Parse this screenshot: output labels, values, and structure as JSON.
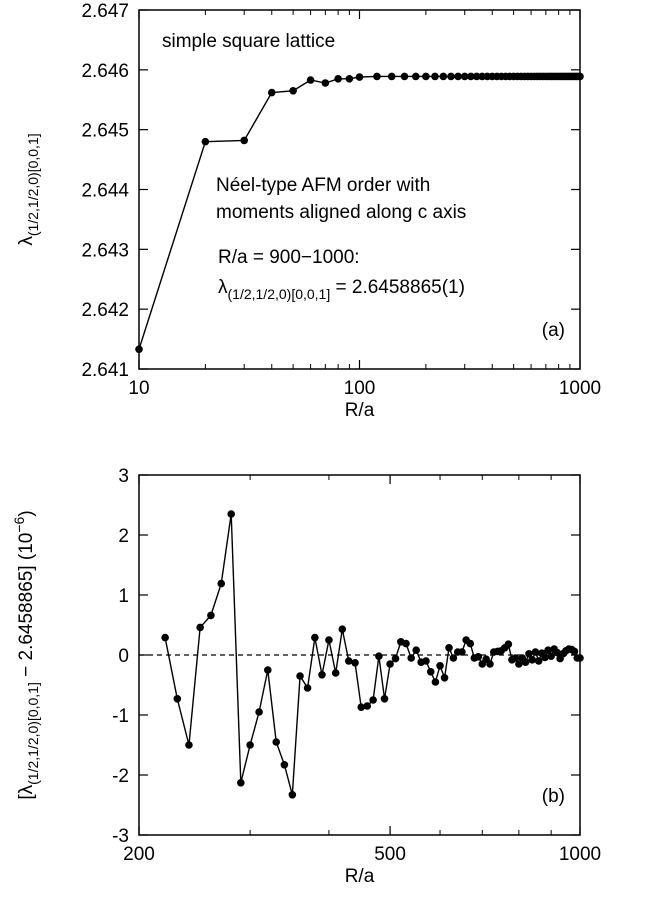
{
  "chart_data": [
    {
      "type": "line",
      "xscale": "log",
      "xlabel": "R/a",
      "ylabel": [
        "λ",
        "(1/2,1/2,0)[0,0,1]"
      ],
      "xlim": [
        10,
        1000
      ],
      "xticks": [
        10,
        100,
        1000
      ],
      "ylim": [
        2.641,
        2.647
      ],
      "yticks": [
        2.641,
        2.642,
        2.643,
        2.644,
        2.645,
        2.646,
        2.647
      ],
      "color": "#000000",
      "x": [
        10,
        20,
        30,
        40,
        50,
        60,
        70,
        80,
        90,
        100,
        120,
        140,
        160,
        180,
        200,
        220,
        240,
        260,
        280,
        300,
        320,
        340,
        360,
        380,
        400,
        420,
        440,
        460,
        480,
        500,
        520,
        540,
        560,
        580,
        600,
        620,
        640,
        660,
        680,
        700,
        720,
        740,
        760,
        780,
        800,
        820,
        840,
        860,
        880,
        900,
        920,
        940,
        960,
        980,
        1000
      ],
      "values": [
        2.64133,
        2.6448,
        2.64482,
        2.64562,
        2.64565,
        2.64583,
        2.64578,
        2.64585,
        2.64585,
        2.64588,
        2.64589,
        2.64589,
        2.64589,
        2.64589,
        2.64589,
        2.64589,
        2.64589,
        2.64589,
        2.64589,
        2.64589,
        2.64589,
        2.64589,
        2.64589,
        2.64589,
        2.64589,
        2.64589,
        2.64589,
        2.64589,
        2.64589,
        2.64589,
        2.64589,
        2.64589,
        2.64589,
        2.64589,
        2.64589,
        2.64589,
        2.64589,
        2.64589,
        2.64589,
        2.64589,
        2.64589,
        2.64589,
        2.64589,
        2.64589,
        2.64589,
        2.64589,
        2.64589,
        2.64589,
        2.64589,
        2.64589,
        2.64589,
        2.64589,
        2.64589,
        2.64589,
        2.64589
      ],
      "annotations": [
        "simple square lattice",
        "Néel-type AFM order with",
        "moments aligned along c axis",
        "R/a = 900−1000:"
      ],
      "result_label": [
        "λ",
        "(1/2,1/2,0)[0,0,1]",
        " = 2.6458865(1)"
      ],
      "panel_label": "(a)"
    },
    {
      "type": "line",
      "xscale": "log",
      "xlabel": "R/a",
      "ylabel": [
        "[λ",
        "(1/2,1/2,0)[0,0,1]",
        " − 2.6458865] (10",
        "−6",
        ")"
      ],
      "xlim": [
        200,
        1000
      ],
      "xticks": [
        200,
        500,
        1000
      ],
      "ylim": [
        -3,
        3
      ],
      "yticks": [
        -3,
        -2,
        -1,
        0,
        1,
        2,
        3
      ],
      "hline": 0,
      "color": "#000000",
      "x": [
        220,
        230,
        240,
        250,
        260,
        270,
        280,
        290,
        300,
        310,
        320,
        330,
        340,
        350,
        360,
        370,
        380,
        390,
        400,
        410,
        420,
        430,
        440,
        450,
        460,
        470,
        480,
        490,
        500,
        510,
        520,
        530,
        540,
        550,
        560,
        570,
        580,
        590,
        600,
        610,
        620,
        630,
        640,
        650,
        660,
        670,
        680,
        690,
        700,
        710,
        720,
        730,
        740,
        750,
        760,
        770,
        780,
        790,
        800,
        810,
        820,
        830,
        840,
        850,
        860,
        870,
        880,
        890,
        900,
        910,
        920,
        930,
        940,
        950,
        960,
        970,
        980,
        990,
        1000
      ],
      "values": [
        0.29,
        -0.73,
        -1.5,
        0.46,
        0.66,
        1.19,
        2.35,
        -2.13,
        -1.5,
        -0.95,
        -0.25,
        -1.45,
        -1.83,
        -2.33,
        -0.35,
        -0.55,
        0.29,
        -0.33,
        0.25,
        -0.3,
        0.43,
        -0.1,
        -0.13,
        -0.87,
        -0.85,
        -0.75,
        -0.02,
        -0.73,
        -0.15,
        -0.06,
        0.22,
        0.19,
        -0.05,
        0.08,
        -0.12,
        -0.1,
        -0.28,
        -0.45,
        -0.18,
        -0.38,
        0.12,
        -0.05,
        0.05,
        0.05,
        0.25,
        0.19,
        -0.05,
        -0.03,
        -0.15,
        -0.07,
        -0.15,
        0.05,
        0.06,
        0.07,
        0.12,
        0.18,
        -0.08,
        -0.05,
        -0.15,
        -0.05,
        -0.12,
        0.02,
        -0.08,
        0.05,
        -0.1,
        0.03,
        -0.04,
        0.08,
        -0.02,
        0.1,
        0.04,
        -0.06,
        0.02,
        0.07,
        0.1,
        0.09,
        0.06,
        -0.05,
        -0.05
      ],
      "panel_label": "(b)"
    }
  ]
}
